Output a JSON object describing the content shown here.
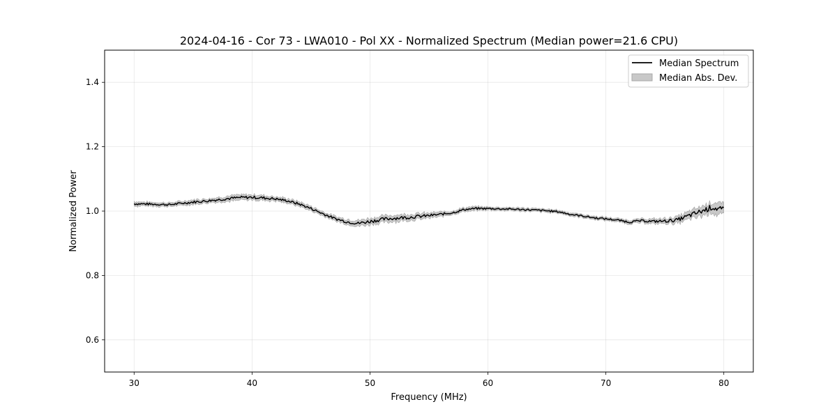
{
  "chart_data": {
    "type": "line",
    "title": "2024-04-16 - Cor 73 - LWA010 - Pol XX - Normalized Spectrum (Median power=21.6 CPU)",
    "xlabel": "Frequency (MHz)",
    "ylabel": "Normalized Power",
    "xlim": [
      27.5,
      82.5
    ],
    "ylim": [
      0.5,
      1.5
    ],
    "xticks": [
      30,
      40,
      50,
      60,
      70,
      80
    ],
    "yticks": [
      0.6,
      0.8,
      1.0,
      1.2,
      1.4
    ],
    "xtick_labels": [
      "30",
      "40",
      "50",
      "60",
      "70",
      "80"
    ],
    "ytick_labels": [
      "0.6",
      "0.8",
      "1.0",
      "1.2",
      "1.4"
    ],
    "grid": true,
    "legend_position": "top-right",
    "series": [
      {
        "name": "Median Spectrum",
        "color": "#000000",
        "x": [
          30,
          31,
          32,
          33,
          34,
          35,
          36,
          37,
          38,
          39,
          40,
          41,
          42,
          43,
          44,
          45,
          46,
          47,
          48,
          49,
          50,
          51,
          52,
          53,
          54,
          55,
          56,
          57,
          58,
          59,
          60,
          61,
          62,
          63,
          64,
          65,
          66,
          67,
          68,
          69,
          70,
          71,
          72,
          73,
          74,
          75,
          76,
          77,
          78,
          79,
          80
        ],
        "values": [
          1.023,
          1.022,
          1.021,
          1.02,
          1.024,
          1.028,
          1.031,
          1.035,
          1.039,
          1.042,
          1.043,
          1.041,
          1.038,
          1.032,
          1.022,
          1.008,
          0.992,
          0.977,
          0.967,
          0.962,
          0.968,
          0.974,
          0.978,
          0.98,
          0.983,
          0.986,
          0.99,
          0.995,
          1.005,
          1.008,
          1.008,
          1.007,
          1.006,
          1.005,
          1.003,
          1.001,
          0.998,
          0.99,
          0.985,
          0.979,
          0.976,
          0.972,
          0.966,
          0.97,
          0.968,
          0.969,
          0.972,
          0.985,
          0.998,
          1.012,
          1.002
        ]
      }
    ],
    "band": {
      "name": "Median Abs. Dev.",
      "color": "#c8c8c8",
      "x": [
        30,
        31,
        32,
        33,
        34,
        35,
        36,
        37,
        38,
        39,
        40,
        41,
        42,
        43,
        44,
        45,
        46,
        47,
        48,
        49,
        50,
        51,
        52,
        53,
        54,
        55,
        56,
        57,
        58,
        59,
        60,
        61,
        62,
        63,
        64,
        65,
        66,
        67,
        68,
        69,
        70,
        71,
        72,
        73,
        74,
        75,
        76,
        77,
        78,
        79,
        80
      ],
      "halfwidth": [
        0.007,
        0.006,
        0.006,
        0.006,
        0.006,
        0.007,
        0.007,
        0.007,
        0.008,
        0.008,
        0.008,
        0.008,
        0.007,
        0.007,
        0.007,
        0.007,
        0.007,
        0.007,
        0.008,
        0.009,
        0.01,
        0.01,
        0.01,
        0.01,
        0.009,
        0.008,
        0.007,
        0.006,
        0.006,
        0.006,
        0.005,
        0.005,
        0.005,
        0.005,
        0.005,
        0.005,
        0.005,
        0.005,
        0.005,
        0.005,
        0.005,
        0.005,
        0.006,
        0.006,
        0.007,
        0.008,
        0.01,
        0.012,
        0.015,
        0.017,
        0.018
      ]
    }
  }
}
